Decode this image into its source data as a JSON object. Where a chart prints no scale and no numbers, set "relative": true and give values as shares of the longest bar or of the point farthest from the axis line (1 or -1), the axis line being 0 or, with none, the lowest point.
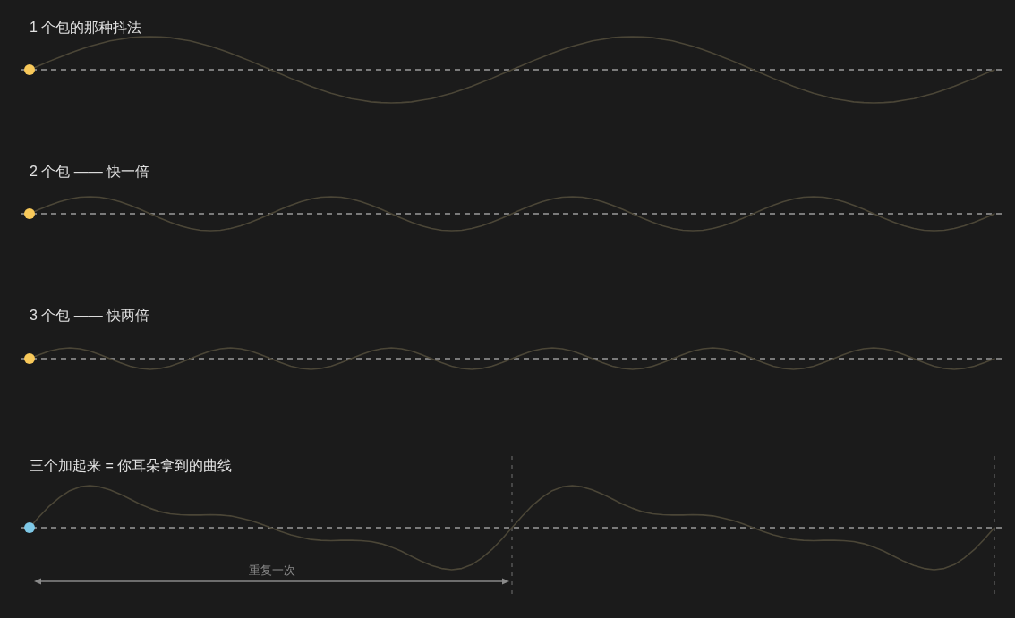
{
  "chart_data": [
    {
      "type": "line",
      "title": "1 个包的那种抖法",
      "relative": true,
      "tick_labels": false,
      "categories": [
        null,
        null,
        null,
        null,
        null,
        null,
        null,
        null,
        null,
        null,
        null,
        null,
        null,
        null,
        null,
        null,
        null,
        null,
        null,
        null,
        null,
        null,
        null,
        null,
        null,
        null,
        null,
        null,
        null,
        null,
        null,
        null,
        null,
        null,
        null,
        null,
        null,
        null,
        null,
        null,
        null,
        null,
        null,
        null,
        null,
        null,
        null,
        null,
        null,
        null,
        null,
        null,
        null,
        null,
        null,
        null,
        null,
        null,
        null,
        null,
        null,
        null,
        null,
        null,
        null,
        null,
        null,
        null,
        null,
        null,
        null,
        null,
        null,
        null,
        null,
        null,
        null,
        null,
        null,
        null,
        null,
        null,
        null,
        null,
        null,
        null,
        null,
        null,
        null,
        null,
        null,
        null,
        null,
        null,
        null,
        null,
        null
      ],
      "series": [
        {
          "color": "#4b4637",
          "values": [
            0,
            0.13,
            0.26,
            0.38,
            0.5,
            0.61,
            0.71,
            0.79,
            0.87,
            0.92,
            0.97,
            0.99,
            1,
            0.99,
            0.97,
            0.92,
            0.87,
            0.79,
            0.71,
            0.61,
            0.5,
            0.38,
            0.26,
            0.13,
            0,
            -0.13,
            -0.26,
            -0.38,
            -0.5,
            -0.61,
            -0.71,
            -0.79,
            -0.87,
            -0.92,
            -0.97,
            -0.99,
            -1,
            -0.99,
            -0.97,
            -0.92,
            -0.87,
            -0.79,
            -0.71,
            -0.61,
            -0.5,
            -0.38,
            -0.26,
            -0.13,
            0,
            0.13,
            0.26,
            0.38,
            0.5,
            0.61,
            0.71,
            0.79,
            0.87,
            0.92,
            0.97,
            0.99,
            1,
            0.99,
            0.97,
            0.92,
            0.87,
            0.79,
            0.71,
            0.61,
            0.5,
            0.38,
            0.26,
            0.13,
            0,
            -0.13,
            -0.26,
            -0.38,
            -0.5,
            -0.61,
            -0.71,
            -0.79,
            -0.87,
            -0.92,
            -0.97,
            -0.99,
            -1,
            -0.99,
            -0.97,
            -0.92,
            -0.87,
            -0.79,
            -0.71,
            -0.61,
            -0.5,
            -0.38,
            -0.26,
            -0.13,
            0
          ]
        },
        {
          "color": "#f8c95a",
          "marker": "circle",
          "values": [
            0,
            null,
            null,
            null,
            null,
            null,
            null,
            null,
            null,
            null,
            null,
            null,
            null,
            null,
            null,
            null,
            null,
            null,
            null,
            null,
            null,
            null,
            null,
            null,
            null,
            null,
            null,
            null,
            null,
            null,
            null,
            null,
            null,
            null,
            null,
            null,
            null,
            null,
            null,
            null,
            null,
            null,
            null,
            null,
            null,
            null,
            null,
            null,
            null,
            null,
            null,
            null,
            null,
            null,
            null,
            null,
            null,
            null,
            null,
            null,
            null,
            null,
            null,
            null,
            null,
            null,
            null,
            null,
            null,
            null,
            null,
            null,
            null,
            null,
            null,
            null,
            null,
            null,
            null,
            null,
            null,
            null,
            null,
            null,
            null,
            null,
            null,
            null,
            null,
            null,
            null,
            null,
            null,
            null,
            null,
            null,
            null
          ]
        }
      ],
      "ref_lines": [
        {
          "axis": "y",
          "value": 0,
          "line_style": "dashed",
          "color": "#9a9a9a"
        }
      ]
    },
    {
      "type": "line",
      "title": "2 个包 —— 快一倍",
      "relative": true,
      "tick_labels": false,
      "categories": [
        null,
        null,
        null,
        null,
        null,
        null,
        null,
        null,
        null,
        null,
        null,
        null,
        null,
        null,
        null,
        null,
        null,
        null,
        null,
        null,
        null,
        null,
        null,
        null,
        null,
        null,
        null,
        null,
        null,
        null,
        null,
        null,
        null,
        null,
        null,
        null,
        null,
        null,
        null,
        null,
        null,
        null,
        null,
        null,
        null,
        null,
        null,
        null,
        null,
        null,
        null,
        null,
        null,
        null,
        null,
        null,
        null,
        null,
        null,
        null,
        null,
        null,
        null,
        null,
        null,
        null,
        null,
        null,
        null,
        null,
        null,
        null,
        null,
        null,
        null,
        null,
        null,
        null,
        null,
        null,
        null,
        null,
        null,
        null,
        null,
        null,
        null,
        null,
        null,
        null,
        null,
        null,
        null,
        null,
        null,
        null,
        null
      ],
      "series": [
        {
          "color": "#4b4637",
          "values": [
            0,
            0.26,
            0.5,
            0.71,
            0.87,
            0.97,
            1,
            0.97,
            0.87,
            0.71,
            0.5,
            0.26,
            0,
            -0.26,
            -0.5,
            -0.71,
            -0.87,
            -0.97,
            -1,
            -0.97,
            -0.87,
            -0.71,
            -0.5,
            -0.26,
            0,
            0.26,
            0.5,
            0.71,
            0.87,
            0.97,
            1,
            0.97,
            0.87,
            0.71,
            0.5,
            0.26,
            0,
            -0.26,
            -0.5,
            -0.71,
            -0.87,
            -0.97,
            -1,
            -0.97,
            -0.87,
            -0.71,
            -0.5,
            -0.26,
            0,
            0.26,
            0.5,
            0.71,
            0.87,
            0.97,
            1,
            0.97,
            0.87,
            0.71,
            0.5,
            0.26,
            0,
            -0.26,
            -0.5,
            -0.71,
            -0.87,
            -0.97,
            -1,
            -0.97,
            -0.87,
            -0.71,
            -0.5,
            -0.26,
            0,
            0.26,
            0.5,
            0.71,
            0.87,
            0.97,
            1,
            0.97,
            0.87,
            0.71,
            0.5,
            0.26,
            0,
            -0.26,
            -0.5,
            -0.71,
            -0.87,
            -0.97,
            -1,
            -0.97,
            -0.87,
            -0.71,
            -0.5,
            -0.26,
            0
          ]
        },
        {
          "color": "#f8c95a",
          "marker": "circle",
          "values": [
            0,
            null,
            null,
            null,
            null,
            null,
            null,
            null,
            null,
            null,
            null,
            null,
            null,
            null,
            null,
            null,
            null,
            null,
            null,
            null,
            null,
            null,
            null,
            null,
            null,
            null,
            null,
            null,
            null,
            null,
            null,
            null,
            null,
            null,
            null,
            null,
            null,
            null,
            null,
            null,
            null,
            null,
            null,
            null,
            null,
            null,
            null,
            null,
            null,
            null,
            null,
            null,
            null,
            null,
            null,
            null,
            null,
            null,
            null,
            null,
            null,
            null,
            null,
            null,
            null,
            null,
            null,
            null,
            null,
            null,
            null,
            null,
            null,
            null,
            null,
            null,
            null,
            null,
            null,
            null,
            null,
            null,
            null,
            null,
            null,
            null,
            null,
            null,
            null,
            null,
            null,
            null,
            null,
            null,
            null,
            null,
            null
          ]
        }
      ],
      "ref_lines": [
        {
          "axis": "y",
          "value": 0,
          "line_style": "dashed",
          "color": "#9a9a9a"
        }
      ]
    },
    {
      "type": "line",
      "title": "3 个包 —— 快两倍",
      "relative": true,
      "tick_labels": false,
      "categories": [
        null,
        null,
        null,
        null,
        null,
        null,
        null,
        null,
        null,
        null,
        null,
        null,
        null,
        null,
        null,
        null,
        null,
        null,
        null,
        null,
        null,
        null,
        null,
        null,
        null,
        null,
        null,
        null,
        null,
        null,
        null,
        null,
        null,
        null,
        null,
        null,
        null,
        null,
        null,
        null,
        null,
        null,
        null,
        null,
        null,
        null,
        null,
        null,
        null,
        null,
        null,
        null,
        null,
        null,
        null,
        null,
        null,
        null,
        null,
        null,
        null,
        null,
        null,
        null,
        null,
        null,
        null,
        null,
        null,
        null,
        null,
        null,
        null,
        null,
        null,
        null,
        null,
        null,
        null,
        null,
        null,
        null,
        null,
        null,
        null,
        null,
        null,
        null,
        null,
        null,
        null,
        null,
        null,
        null,
        null,
        null,
        null
      ],
      "series": [
        {
          "color": "#4b4637",
          "values": [
            0,
            0.38,
            0.71,
            0.92,
            1,
            0.92,
            0.71,
            0.38,
            0,
            -0.38,
            -0.71,
            -0.92,
            -1,
            -0.92,
            -0.71,
            -0.38,
            0,
            0.38,
            0.71,
            0.92,
            1,
            0.92,
            0.71,
            0.38,
            0,
            -0.38,
            -0.71,
            -0.92,
            -1,
            -0.92,
            -0.71,
            -0.38,
            0,
            0.38,
            0.71,
            0.92,
            1,
            0.92,
            0.71,
            0.38,
            0,
            -0.38,
            -0.71,
            -0.92,
            -1,
            -0.92,
            -0.71,
            -0.38,
            0,
            0.38,
            0.71,
            0.92,
            1,
            0.92,
            0.71,
            0.38,
            0,
            -0.38,
            -0.71,
            -0.92,
            -1,
            -0.92,
            -0.71,
            -0.38,
            0,
            0.38,
            0.71,
            0.92,
            1,
            0.92,
            0.71,
            0.38,
            0,
            -0.38,
            -0.71,
            -0.92,
            -1,
            -0.92,
            -0.71,
            -0.38,
            0,
            0.38,
            0.71,
            0.92,
            1,
            0.92,
            0.71,
            0.38,
            0,
            -0.38,
            -0.71,
            -0.92,
            -1,
            -0.92,
            -0.71,
            -0.38,
            0
          ]
        },
        {
          "color": "#f8c95a",
          "marker": "circle",
          "values": [
            0,
            null,
            null,
            null,
            null,
            null,
            null,
            null,
            null,
            null,
            null,
            null,
            null,
            null,
            null,
            null,
            null,
            null,
            null,
            null,
            null,
            null,
            null,
            null,
            null,
            null,
            null,
            null,
            null,
            null,
            null,
            null,
            null,
            null,
            null,
            null,
            null,
            null,
            null,
            null,
            null,
            null,
            null,
            null,
            null,
            null,
            null,
            null,
            null,
            null,
            null,
            null,
            null,
            null,
            null,
            null,
            null,
            null,
            null,
            null,
            null,
            null,
            null,
            null,
            null,
            null,
            null,
            null,
            null,
            null,
            null,
            null,
            null,
            null,
            null,
            null,
            null,
            null,
            null,
            null,
            null,
            null,
            null,
            null,
            null,
            null,
            null,
            null,
            null,
            null,
            null,
            null,
            null,
            null,
            null,
            null,
            null
          ]
        }
      ],
      "ref_lines": [
        {
          "axis": "y",
          "value": 0,
          "line_style": "dashed",
          "color": "#9a9a9a"
        }
      ]
    },
    {
      "type": "line",
      "title": "三个加起来 = 你耳朵拿到的曲线",
      "relative": true,
      "tick_labels": false,
      "categories": [
        null,
        null,
        null,
        null,
        null,
        null,
        null,
        null,
        null,
        null,
        null,
        null,
        null,
        null,
        null,
        null,
        null,
        null,
        null,
        null,
        null,
        null,
        null,
        null,
        null,
        null,
        null,
        null,
        null,
        null,
        null,
        null,
        null,
        null,
        null,
        null,
        null,
        null,
        null,
        null,
        null,
        null,
        null,
        null,
        null,
        null,
        null,
        null,
        null,
        null,
        null,
        null,
        null,
        null,
        null,
        null,
        null,
        null,
        null,
        null,
        null,
        null,
        null,
        null,
        null,
        null,
        null,
        null,
        null,
        null,
        null,
        null,
        null,
        null,
        null,
        null,
        null,
        null,
        null,
        null,
        null,
        null,
        null,
        null,
        null,
        null,
        null,
        null,
        null,
        null,
        null,
        null,
        null,
        null,
        null,
        null,
        null
      ],
      "series": [
        {
          "color": "#4b4637",
          "values": [
            0,
            0.27,
            0.52,
            0.72,
            0.88,
            0.97,
            1,
            0.97,
            0.9,
            0.8,
            0.68,
            0.56,
            0.46,
            0.38,
            0.33,
            0.31,
            0.3,
            0.3,
            0.31,
            0.3,
            0.28,
            0.23,
            0.17,
            0.09,
            0,
            -0.09,
            -0.17,
            -0.23,
            -0.28,
            -0.3,
            -0.31,
            -0.3,
            -0.3,
            -0.31,
            -0.33,
            -0.38,
            -0.46,
            -0.56,
            -0.68,
            -0.8,
            -0.9,
            -0.97,
            -1,
            -0.97,
            -0.88,
            -0.72,
            -0.52,
            -0.27,
            0,
            0.27,
            0.52,
            0.72,
            0.88,
            0.97,
            1,
            0.97,
            0.9,
            0.8,
            0.68,
            0.56,
            0.46,
            0.38,
            0.33,
            0.31,
            0.3,
            0.3,
            0.31,
            0.3,
            0.28,
            0.23,
            0.17,
            0.09,
            0,
            -0.09,
            -0.17,
            -0.23,
            -0.28,
            -0.3,
            -0.31,
            -0.3,
            -0.3,
            -0.31,
            -0.33,
            -0.38,
            -0.46,
            -0.56,
            -0.68,
            -0.8,
            -0.9,
            -0.97,
            -1,
            -0.97,
            -0.88,
            -0.72,
            -0.52,
            -0.27,
            0
          ]
        },
        {
          "color": "#7ec8e6",
          "marker": "circle",
          "values": [
            0,
            null,
            null,
            null,
            null,
            null,
            null,
            null,
            null,
            null,
            null,
            null,
            null,
            null,
            null,
            null,
            null,
            null,
            null,
            null,
            null,
            null,
            null,
            null,
            null,
            null,
            null,
            null,
            null,
            null,
            null,
            null,
            null,
            null,
            null,
            null,
            null,
            null,
            null,
            null,
            null,
            null,
            null,
            null,
            null,
            null,
            null,
            null,
            null,
            null,
            null,
            null,
            null,
            null,
            null,
            null,
            null,
            null,
            null,
            null,
            null,
            null,
            null,
            null,
            null,
            null,
            null,
            null,
            null,
            null,
            null,
            null,
            null,
            null,
            null,
            null,
            null,
            null,
            null,
            null,
            null,
            null,
            null,
            null,
            null,
            null,
            null,
            null,
            null,
            null,
            null,
            null,
            null,
            null,
            null,
            null,
            null
          ]
        }
      ],
      "ref_lines": [
        {
          "axis": "y",
          "value": 0,
          "line_style": "dashed",
          "color": "#9a9a9a"
        }
      ],
      "annotations": [
        "重复一次"
      ]
    }
  ]
}
